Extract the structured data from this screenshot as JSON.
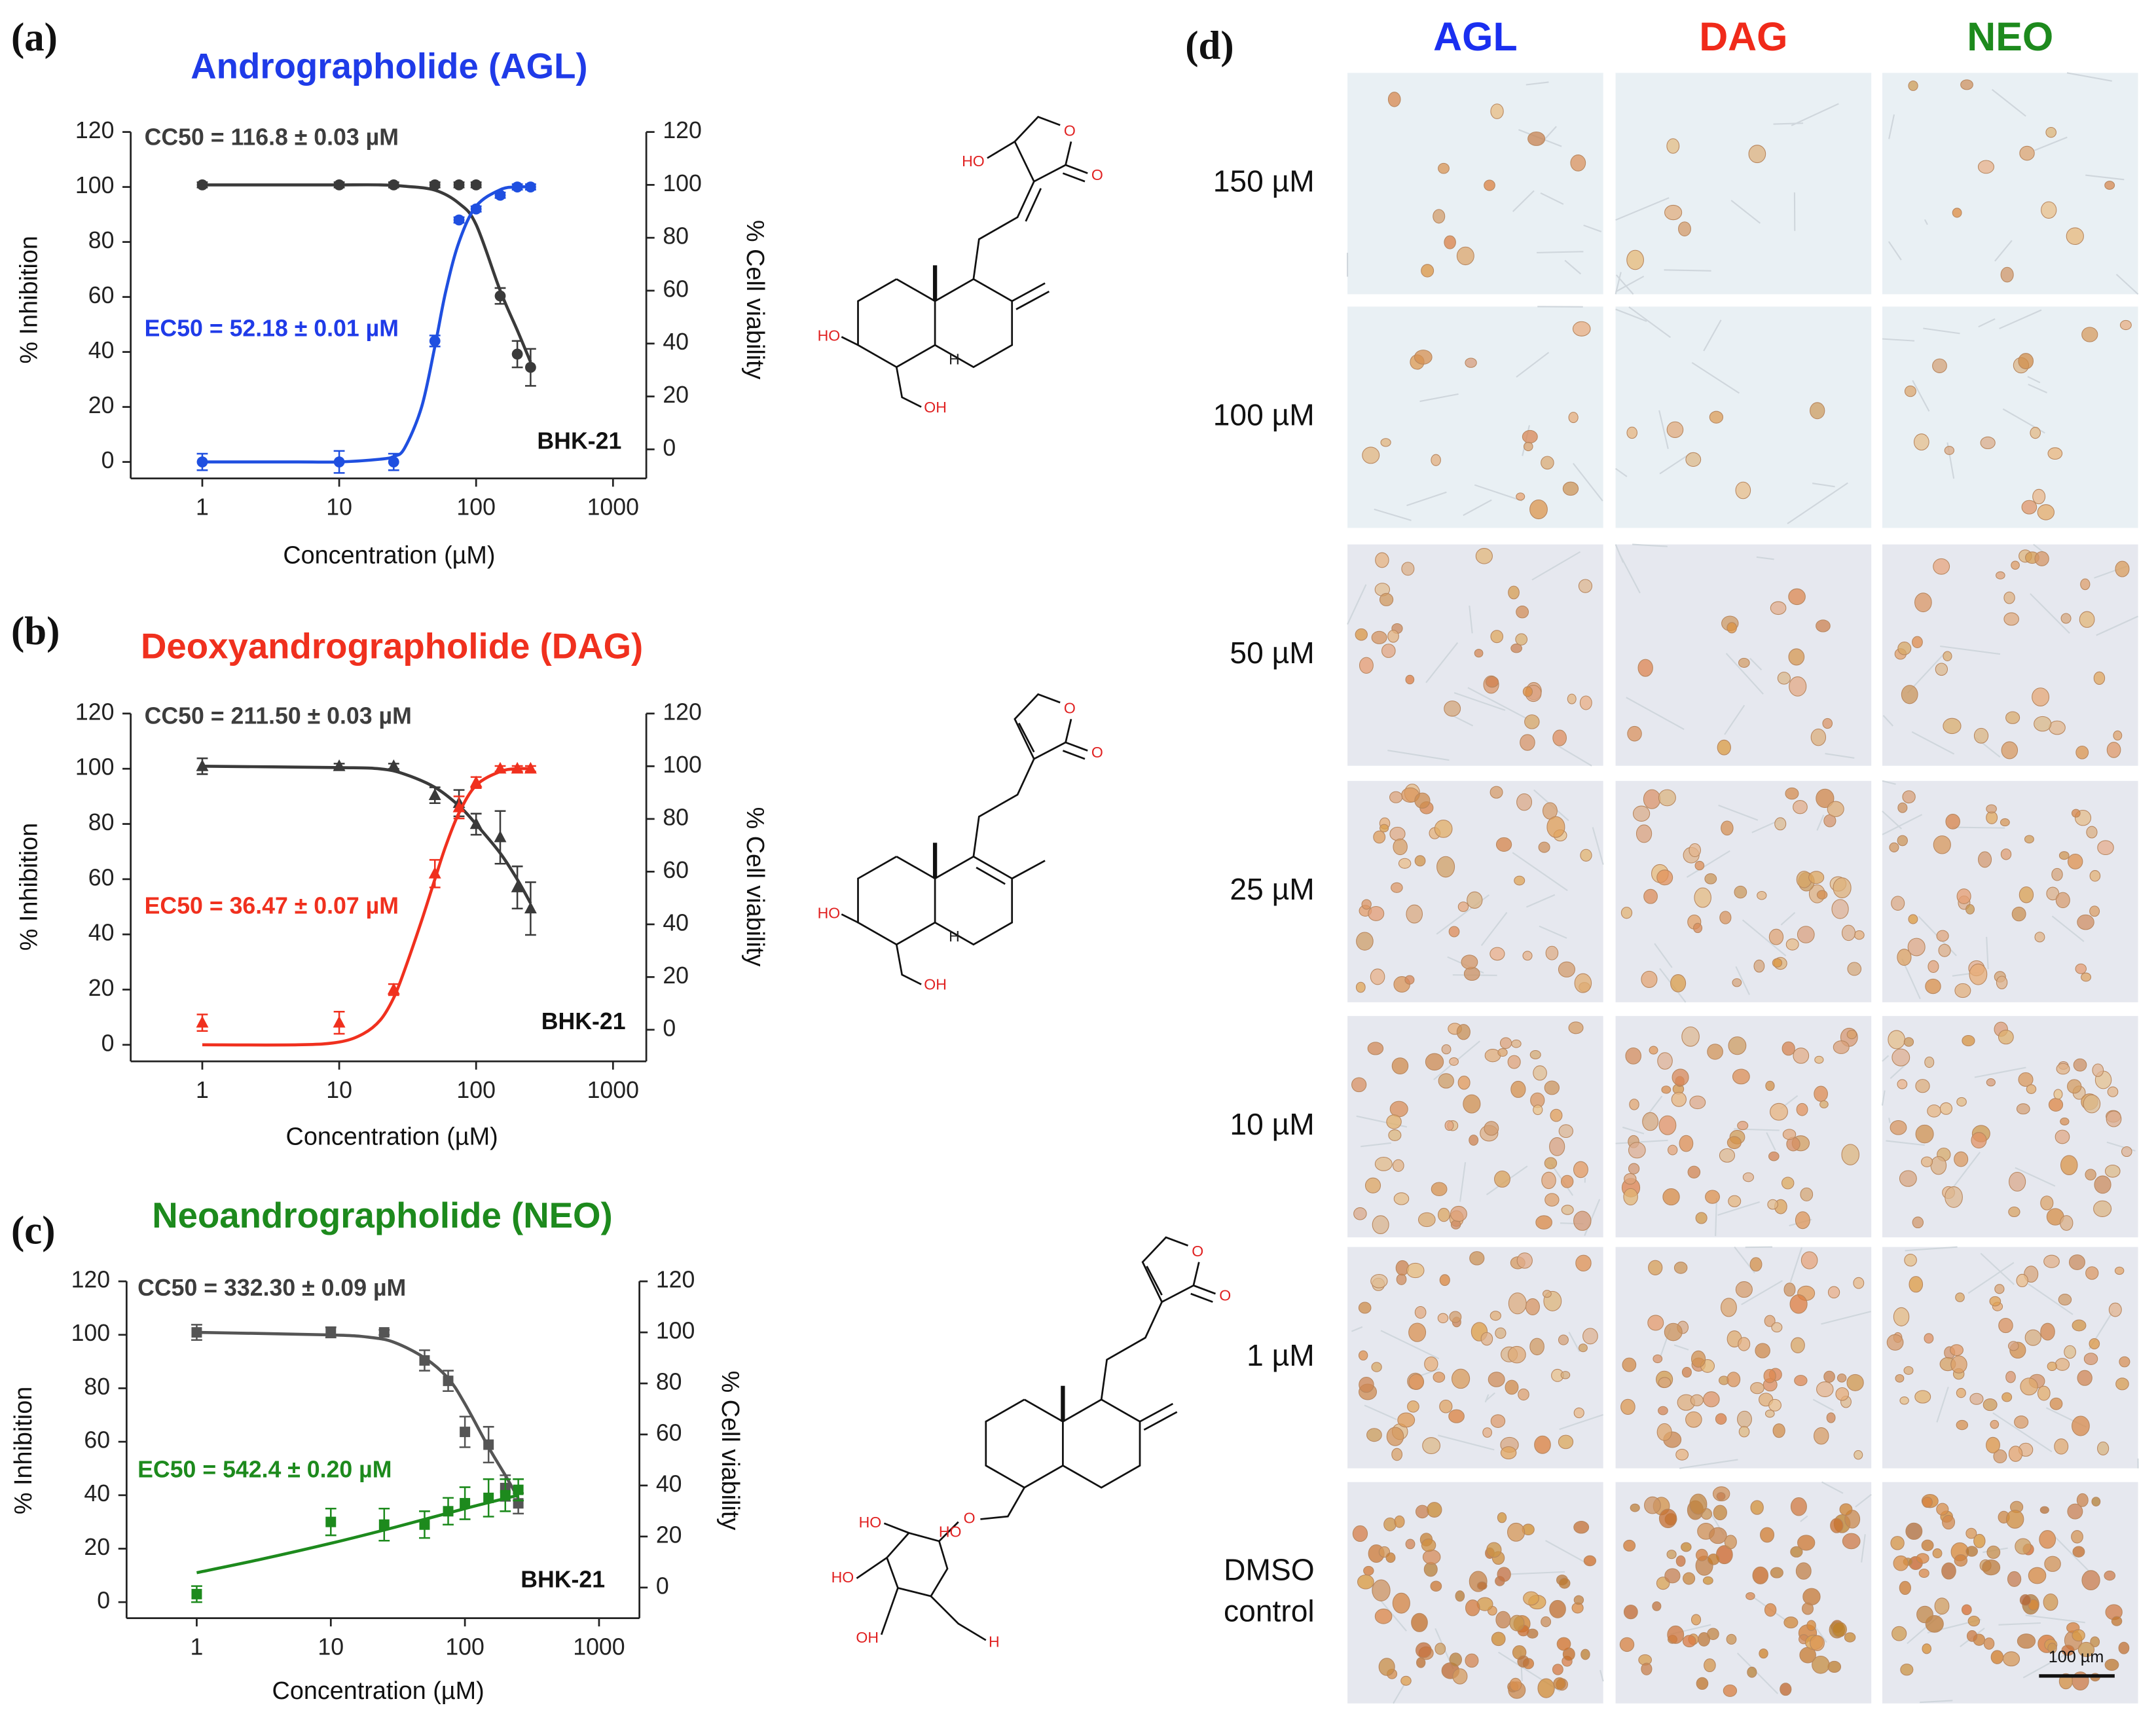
{
  "chart_data": [
    {
      "type": "scatter",
      "panel_label": "(a)",
      "title": "Andrographolide (AGL)",
      "title_color": "#1f3be8",
      "annotations": [
        {
          "text": "CC50 = 116.8 ± 0.03 µM",
          "color": "#3d3d3d"
        },
        {
          "text": "EC50 = 52.18 ± 0.01 µM",
          "color": "#1f3be8"
        },
        {
          "text": "BHK-21",
          "color": "#111111"
        }
      ],
      "xlabel": "Concentration (µM)",
      "ylabel": "% Inhibition",
      "y2label": "% Cell viability",
      "xscale": "log",
      "xlim": [
        0.3,
        1750
      ],
      "xticks": [
        1,
        10,
        100,
        1000
      ],
      "ylim": [
        -6,
        120
      ],
      "yticks": [
        0,
        20,
        40,
        60,
        80,
        100,
        120
      ],
      "y2lim": [
        -11,
        120
      ],
      "y2ticks": [
        0,
        20,
        40,
        60,
        80,
        100,
        120
      ],
      "series": [
        {
          "color": "#3a3a3a",
          "marker": "line",
          "axis": "y2",
          "x": [
            1,
            5,
            10,
            20,
            30,
            50,
            75,
            100,
            150,
            200,
            250
          ],
          "values": [
            100,
            100,
            100,
            100,
            99.5,
            98,
            93,
            85,
            60,
            45,
            33
          ]
        },
        {
          "color": "#3a3a3a",
          "marker": "circle",
          "axis": "y2",
          "x": [
            1,
            10,
            25,
            50,
            75,
            100,
            150,
            200,
            250
          ],
          "values": [
            100,
            100,
            100,
            100,
            100,
            100,
            58,
            36,
            31
          ],
          "errors": [
            1,
            1,
            1,
            1,
            1,
            1,
            3,
            5,
            7
          ]
        },
        {
          "color": "#1f4fe0",
          "marker": "line",
          "x": [
            1,
            5,
            10,
            20,
            25,
            30,
            40,
            50,
            60,
            75,
            100,
            150,
            200,
            250
          ],
          "values": [
            0,
            0,
            0,
            1,
            2,
            5,
            20,
            42,
            62,
            80,
            93,
            99,
            100,
            100
          ]
        },
        {
          "color": "#1f4fe0",
          "marker": "circle",
          "x": [
            1,
            10,
            25,
            50,
            75,
            100,
            150,
            200,
            250
          ],
          "values": [
            0,
            0,
            0,
            44,
            88,
            92,
            97,
            100,
            100
          ],
          "errors": [
            3,
            4,
            3,
            2,
            1,
            1,
            1,
            1,
            1
          ]
        }
      ]
    },
    {
      "type": "scatter",
      "panel_label": "(b)",
      "title": "Deoxyandrographolide (DAG)",
      "title_color": "#f0301e",
      "annotations": [
        {
          "text": "CC50 = 211.50 ± 0.03 µM",
          "color": "#3d3d3d"
        },
        {
          "text": "EC50 = 36.47 ± 0.07 µM",
          "color": "#f0301e"
        },
        {
          "text": "BHK-21",
          "color": "#111111"
        }
      ],
      "xlabel": "Concentration (µM)",
      "ylabel": "% Inhibition",
      "y2label": "% Cell viability",
      "xscale": "log",
      "xlim": [
        0.3,
        1750
      ],
      "xticks": [
        1,
        10,
        100,
        1000
      ],
      "ylim": [
        -6,
        120
      ],
      "yticks": [
        0,
        20,
        40,
        60,
        80,
        100,
        120
      ],
      "y2lim": [
        -12,
        120
      ],
      "y2ticks": [
        0,
        20,
        40,
        60,
        80,
        100,
        120
      ],
      "series": [
        {
          "color": "#3a3a3a",
          "marker": "line",
          "axis": "y2",
          "x": [
            1,
            10,
            20,
            30,
            50,
            75,
            100,
            150,
            200,
            250
          ],
          "values": [
            100,
            99.5,
            99,
            97,
            92,
            85,
            78,
            67,
            57,
            48
          ]
        },
        {
          "color": "#3a3a3a",
          "marker": "triangle",
          "axis": "y2",
          "x": [
            1,
            10,
            25,
            50,
            75,
            100,
            150,
            200,
            250
          ],
          "values": [
            100,
            100,
            100,
            89,
            86,
            78,
            73,
            54,
            46
          ],
          "errors": [
            3,
            1,
            1,
            3,
            5,
            4,
            10,
            8,
            10
          ]
        },
        {
          "color": "#f0301e",
          "marker": "line",
          "x": [
            1,
            5,
            10,
            15,
            20,
            25,
            30,
            40,
            50,
            60,
            75,
            100,
            150,
            200,
            250
          ],
          "values": [
            0,
            0,
            1,
            4,
            9,
            17,
            27,
            45,
            60,
            72,
            84,
            94,
            99,
            100,
            100
          ]
        },
        {
          "color": "#f0301e",
          "marker": "triangle",
          "x": [
            1,
            10,
            25,
            50,
            75,
            100,
            150,
            200,
            250
          ],
          "values": [
            8,
            8,
            20,
            62,
            86,
            95,
            100,
            100,
            100
          ],
          "errors": [
            3,
            4,
            2,
            5,
            4,
            2,
            1,
            1,
            1
          ]
        }
      ]
    },
    {
      "type": "scatter",
      "panel_label": "(c)",
      "title": "Neoandrographolide (NEO)",
      "title_color": "#1d8a1d",
      "annotations": [
        {
          "text": "CC50 = 332.30 ± 0.09 µM",
          "color": "#3d3d3d"
        },
        {
          "text": "EC50 = 542.4 ± 0.20 µM",
          "color": "#1d8a1d"
        },
        {
          "text": "BHK-21",
          "color": "#111111"
        }
      ],
      "xlabel": "Concentration (µM)",
      "ylabel": "% Inhibition",
      "y2label": "% Cell viability",
      "xscale": "log",
      "xlim": [
        0.3,
        2000
      ],
      "xticks": [
        1,
        10,
        100,
        1000
      ],
      "ylim": [
        -6,
        120
      ],
      "yticks": [
        0,
        20,
        40,
        60,
        80,
        100,
        120
      ],
      "y2lim": [
        -12,
        120
      ],
      "y2ticks": [
        0,
        20,
        40,
        60,
        80,
        100,
        120
      ],
      "series": [
        {
          "color": "#555555",
          "marker": "line",
          "axis": "y2",
          "x": [
            1,
            10,
            20,
            30,
            50,
            75,
            100,
            150,
            200,
            250
          ],
          "values": [
            100,
            99,
            98,
            96,
            90,
            82,
            72,
            55,
            44,
            35
          ]
        },
        {
          "color": "#555555",
          "marker": "square",
          "axis": "y2",
          "x": [
            1,
            10,
            25,
            50,
            75,
            100,
            150,
            200,
            250
          ],
          "values": [
            100,
            100,
            100,
            89,
            81,
            61,
            56,
            39,
            33
          ],
          "errors": [
            3,
            2,
            1,
            4,
            4,
            6,
            7,
            5,
            4
          ]
        },
        {
          "color": "#1d8a1d",
          "marker": "line",
          "x": [
            1,
            3,
            10,
            30,
            100,
            250
          ],
          "values": [
            11,
            16,
            22,
            28,
            35,
            40
          ]
        },
        {
          "color": "#1d8a1d",
          "marker": "square",
          "x": [
            1,
            10,
            25,
            50,
            75,
            100,
            150,
            200,
            250
          ],
          "values": [
            3,
            30,
            29,
            29,
            34,
            37,
            39,
            40,
            42
          ],
          "errors": [
            3,
            5,
            6,
            5,
            5,
            6,
            7,
            6,
            4
          ]
        }
      ]
    }
  ],
  "micrographs": {
    "panel_label": "(d)",
    "columns": [
      {
        "text": "AGL",
        "color": "#1a2ff0"
      },
      {
        "text": "DAG",
        "color": "#f02a1a"
      },
      {
        "text": "NEO",
        "color": "#1d8a1d"
      }
    ],
    "rows": [
      [
        "150 µM"
      ],
      [
        "100 µM"
      ],
      [
        "50 µM"
      ],
      [
        "25 µM"
      ],
      [
        "10 µM"
      ],
      [
        "1 µM"
      ],
      [
        "DMSO",
        "control"
      ]
    ],
    "scale_bar": "100 µm"
  },
  "structures": [
    {
      "atoms": [
        "O",
        "O",
        "HO",
        "HO",
        "OH",
        "H"
      ]
    },
    {
      "atoms": [
        "O",
        "O",
        "HO",
        "OH",
        "H"
      ]
    },
    {
      "atoms": [
        "O",
        "O",
        "O",
        "HO",
        "HO",
        "HO",
        "OH",
        "H"
      ]
    }
  ]
}
